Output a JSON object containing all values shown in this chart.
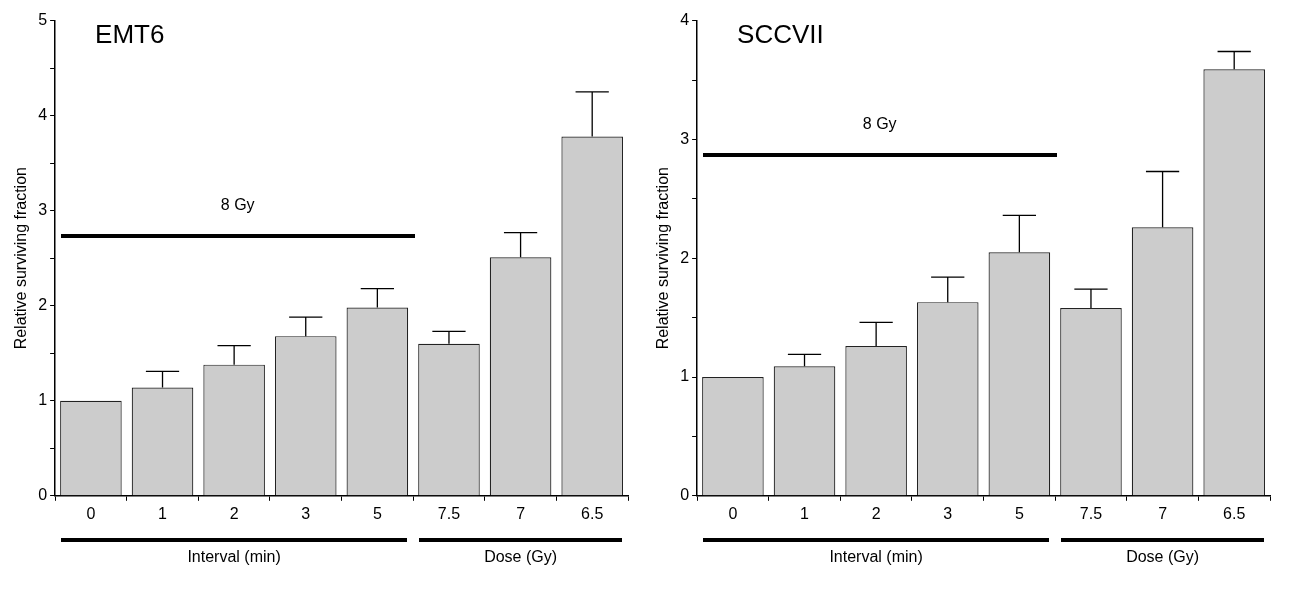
{
  "chart_data": [
    {
      "type": "bar",
      "title": "EMT6",
      "ylabel": "Relative surviving fraction",
      "categories": [
        "0",
        "1",
        "2",
        "3",
        "5",
        "7.5",
        "7",
        "6.5"
      ],
      "values": [
        1.0,
        1.14,
        1.38,
        1.68,
        1.98,
        1.6,
        2.51,
        3.78
      ],
      "errors": [
        null,
        [
          1.14,
          1.31
        ],
        [
          1.38,
          1.58
        ],
        [
          1.68,
          1.88
        ],
        [
          1.98,
          2.18
        ],
        [
          1.6,
          1.73
        ],
        [
          2.51,
          2.77
        ],
        [
          3.78,
          4.25
        ]
      ],
      "color": "#cccccc",
      "ylim": [
        0,
        5
      ],
      "yticks": [
        0,
        {
          "value": 0.5,
          "label": null
        },
        1,
        {
          "value": 1.5,
          "label": null
        },
        2,
        {
          "value": 2.5,
          "label": null
        },
        3,
        {
          "value": 3.5,
          "label": null
        },
        4,
        {
          "value": 4.5,
          "label": null
        },
        5
      ],
      "annotations": [
        "8 Gy",
        "Interval (min)",
        "Dose (Gy)"
      ],
      "grid": false,
      "legend": false
    },
    {
      "type": "bar",
      "title": "SCCVII",
      "ylabel": "Relative surviving fraction",
      "categories": [
        "0",
        "1",
        "2",
        "3",
        "5",
        "7.5",
        "7",
        "6.5"
      ],
      "values": [
        1.0,
        1.09,
        1.26,
        1.63,
        2.05,
        1.58,
        2.26,
        3.59
      ],
      "errors": [
        null,
        [
          1.09,
          1.19
        ],
        [
          1.26,
          1.46
        ],
        [
          1.63,
          1.84
        ],
        [
          2.05,
          2.36
        ],
        [
          1.58,
          1.74
        ],
        [
          2.26,
          2.73
        ],
        [
          3.59,
          3.74
        ]
      ],
      "color": "#cccccc",
      "ylim": [
        0,
        4
      ],
      "yticks": [
        0,
        {
          "value": 0.5,
          "label": null
        },
        1,
        {
          "value": 1.5,
          "label": null
        },
        2,
        {
          "value": 2.5,
          "label": null
        },
        3,
        {
          "value": 3.5,
          "label": null
        },
        4
      ],
      "annotations": [
        "8 Gy",
        "Interval (min)",
        "Dose (Gy)"
      ],
      "grid": false,
      "legend": false
    }
  ]
}
